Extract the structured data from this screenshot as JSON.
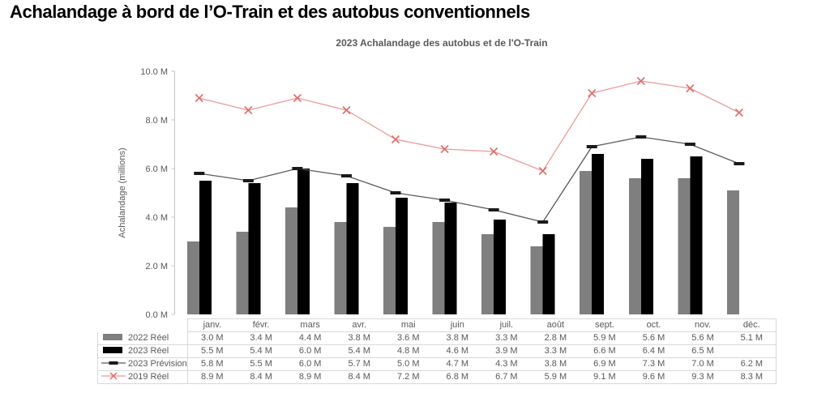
{
  "page_title": "Achalandage à bord de l’O-Train et des autobus conventionnels",
  "chart_data": {
    "type": "combo-bar-line",
    "title": "2023 Achalandage des autobus et de l'O-Train",
    "xlabel": "",
    "ylabel": "Achalandage (millions)",
    "ylim": [
      0,
      10
    ],
    "ytick_labels": [
      "0.0 M",
      "2.0 M",
      "4.0 M",
      "6.0 M",
      "8.0 M",
      "10.0 M"
    ],
    "value_suffix": " M",
    "grid": false,
    "legend_position": "table-left",
    "categories": [
      "janv.",
      "févr.",
      "mars",
      "avr.",
      "mai",
      "juin",
      "juil.",
      "août",
      "sept.",
      "oct.",
      "nov.",
      "déc."
    ],
    "series": [
      {
        "name": "2022 Réel",
        "type": "bar",
        "color": "#7f7f7f",
        "values": [
          3.0,
          3.4,
          4.4,
          3.8,
          3.6,
          3.8,
          3.3,
          2.8,
          5.9,
          5.6,
          5.6,
          5.1
        ]
      },
      {
        "name": "2023 Réel",
        "type": "bar",
        "color": "#000000",
        "values": [
          5.5,
          5.4,
          6.0,
          5.4,
          4.8,
          4.6,
          3.9,
          3.3,
          6.6,
          6.4,
          6.5,
          null
        ]
      },
      {
        "name": "2023 Prévision",
        "type": "line",
        "marker": "dash",
        "color": "#595959",
        "marker_color": "#1a1a1a",
        "values": [
          5.8,
          5.5,
          6.0,
          5.7,
          5.0,
          4.7,
          4.3,
          3.8,
          6.9,
          7.3,
          7.0,
          6.2
        ]
      },
      {
        "name": "2019 Réel",
        "type": "line",
        "marker": "x",
        "color": "#ea9b98",
        "marker_color": "#dd6f6b",
        "values": [
          8.9,
          8.4,
          8.9,
          8.4,
          7.2,
          6.8,
          6.7,
          5.9,
          9.1,
          9.6,
          9.3,
          8.3
        ]
      }
    ]
  }
}
